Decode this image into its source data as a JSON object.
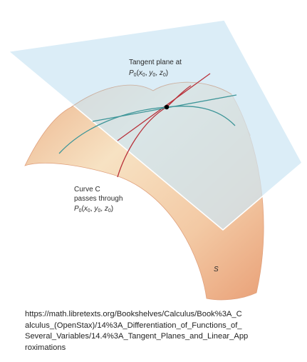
{
  "figure": {
    "tangent_plane_label": "Tangent plane at",
    "curve_label_line1": "Curve C",
    "curve_label_line2": "passes through",
    "point_label": {
      "P": "P",
      "p_sub": "0",
      "open": "(",
      "x": "x",
      "x_sub": "0",
      "sep1": ", ",
      "y": "y",
      "y_sub": "0",
      "sep2": ", ",
      "z": "z",
      "z_sub": "0",
      "close": ")"
    },
    "surface_label": "S",
    "colors": {
      "plane": "#cde6f4",
      "surface_front": "#f2c8a2",
      "surface_back": "#d9a889",
      "curve": "#b8313a",
      "tangent_lines": "#3d9598",
      "point": "#000000"
    }
  },
  "caption": {
    "text": "https://math.libretexts.org/Bookshelves/Calculus/Book%3A_Calculus_(OpenStax)/14%3A_Differentiation_of_Functions_of_Several_Variables/14.4%3A_Tangent_Planes_and_Linear_Approximations",
    "lines": [
      "https://math.libretexts.org/Bookshelves/Calculus/Book%3A_C",
      "alculus_(OpenStax)/14%3A_Differentiation_of_Functions_of_",
      "Several_Variables/14.4%3A_Tangent_Planes_and_Linear_App",
      "roximations"
    ]
  }
}
